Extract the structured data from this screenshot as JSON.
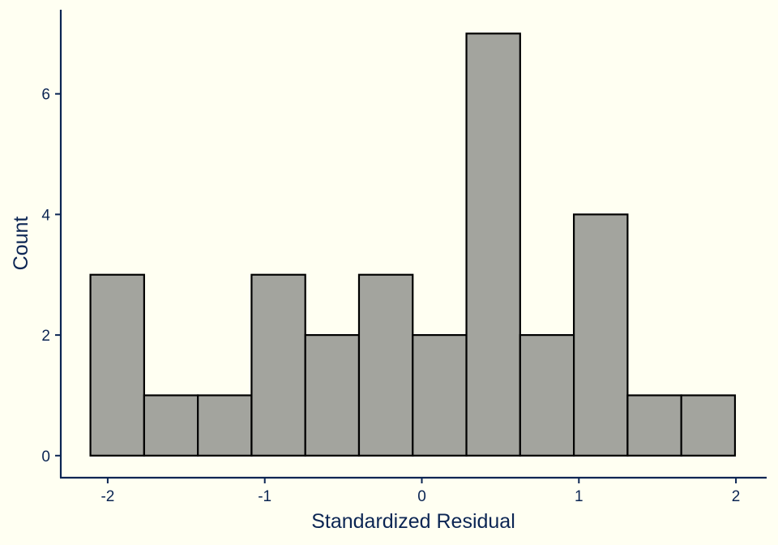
{
  "chart_data": {
    "type": "bar",
    "title": "",
    "xlabel": "Standardized Residual",
    "ylabel": "Count",
    "xlim": [
      -2.3,
      2.2
    ],
    "ylim": [
      0,
      7.33
    ],
    "x_ticks": [
      -2,
      -1,
      0,
      1,
      2
    ],
    "x_tick_labels": [
      "-2",
      "-1",
      "0",
      "1",
      "2"
    ],
    "y_ticks": [
      0,
      2,
      4,
      6
    ],
    "y_tick_labels": [
      "0",
      "2",
      "4",
      "6"
    ],
    "grid": false,
    "bins": [
      {
        "x0": -2.11,
        "x1": -1.768,
        "count": 3
      },
      {
        "x0": -1.768,
        "x1": -1.426,
        "count": 1
      },
      {
        "x0": -1.426,
        "x1": -1.084,
        "count": 1
      },
      {
        "x0": -1.084,
        "x1": -0.742,
        "count": 3
      },
      {
        "x0": -0.742,
        "x1": -0.4,
        "count": 2
      },
      {
        "x0": -0.4,
        "x1": -0.058,
        "count": 3
      },
      {
        "x0": -0.058,
        "x1": 0.284,
        "count": 2
      },
      {
        "x0": 0.284,
        "x1": 0.626,
        "count": 7
      },
      {
        "x0": 0.626,
        "x1": 0.968,
        "count": 2
      },
      {
        "x0": 0.968,
        "x1": 1.31,
        "count": 4
      },
      {
        "x0": 1.31,
        "x1": 1.652,
        "count": 1
      },
      {
        "x0": 1.652,
        "x1": 1.994,
        "count": 1
      }
    ],
    "colors": {
      "background": "#fffff2",
      "bar_fill": "#a3a49e",
      "bar_stroke": "#000000",
      "axis": "#0b2553"
    }
  }
}
